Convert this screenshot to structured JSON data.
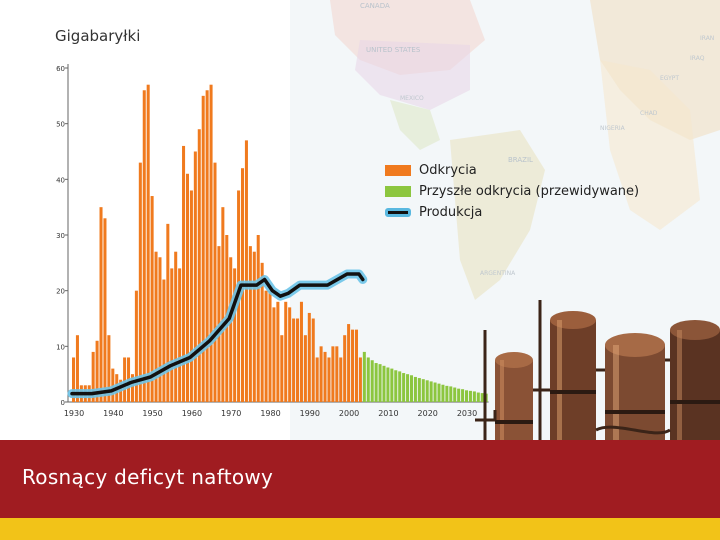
{
  "slide": {
    "title": "Rosnący deficyt naftowy"
  },
  "colors": {
    "discoveries": "#f07a1e",
    "future": "#8cc63f",
    "production_line": "#111111",
    "production_glow": "#6cc3e8",
    "band": "#a01c21",
    "strip": "#f2c318"
  },
  "background": {
    "map_labels": [
      "CANADA",
      "UNITED STATES",
      "MEXICO",
      "BRAZIL",
      "ARGENTINA",
      "EGYPT",
      "IRAQ",
      "IRAN",
      "CHAD",
      "NIGERIA"
    ]
  },
  "chart_data": {
    "type": "bar",
    "title": "Gigabaryłki",
    "xlabel": "",
    "ylabel": "",
    "ylim": [
      0,
      60
    ],
    "xlim": [
      1930,
      2036
    ],
    "yticks": [
      0,
      10,
      20,
      30,
      40,
      50,
      60
    ],
    "xticks": [
      1930,
      1940,
      1950,
      1960,
      1970,
      1980,
      1990,
      2000,
      2010,
      2020,
      2030
    ],
    "grid": false,
    "legend_position": "right",
    "legend": [
      "Odkrycia",
      "Przyszłe odkrycia (przewidywane)",
      "Produkcja"
    ],
    "series": [
      {
        "name": "Odkrycia",
        "type": "bar",
        "x": [
          1930,
          1931,
          1932,
          1933,
          1934,
          1935,
          1936,
          1937,
          1938,
          1939,
          1940,
          1941,
          1942,
          1943,
          1944,
          1945,
          1946,
          1947,
          1948,
          1949,
          1950,
          1951,
          1952,
          1953,
          1954,
          1955,
          1956,
          1957,
          1958,
          1959,
          1960,
          1961,
          1962,
          1963,
          1964,
          1965,
          1966,
          1967,
          1968,
          1969,
          1970,
          1971,
          1972,
          1973,
          1974,
          1975,
          1976,
          1977,
          1978,
          1979,
          1980,
          1981,
          1982,
          1983,
          1984,
          1985,
          1986,
          1987,
          1988,
          1989,
          1990,
          1991,
          1992,
          1993,
          1994,
          1995,
          1996,
          1997,
          1998,
          1999,
          2000,
          2001,
          2002,
          2003
        ],
        "values": [
          8,
          12,
          3,
          3,
          3,
          9,
          11,
          35,
          33,
          12,
          6,
          5,
          4,
          8,
          8,
          5,
          20,
          43,
          56,
          57,
          37,
          27,
          26,
          22,
          32,
          24,
          27,
          24,
          46,
          41,
          38,
          45,
          49,
          55,
          56,
          57,
          43,
          28,
          35,
          30,
          26,
          24,
          38,
          42,
          47,
          28,
          27,
          30,
          25,
          20,
          20,
          17,
          18,
          12,
          18,
          17,
          15,
          15,
          18,
          12,
          16,
          15,
          8,
          10,
          9,
          8,
          10,
          10,
          8,
          12,
          14,
          13,
          13,
          8
        ]
      },
      {
        "name": "Przyszłe odkrycia (przewidywane)",
        "type": "bar",
        "x": [
          2004,
          2005,
          2006,
          2007,
          2008,
          2009,
          2010,
          2011,
          2012,
          2013,
          2014,
          2015,
          2016,
          2017,
          2018,
          2019,
          2020,
          2021,
          2022,
          2023,
          2024,
          2025,
          2026,
          2027,
          2028,
          2029,
          2030,
          2031,
          2032,
          2033,
          2034,
          2035
        ],
        "values": [
          9,
          8,
          7.5,
          7,
          6.8,
          6.5,
          6.2,
          6,
          5.7,
          5.5,
          5.2,
          5,
          4.8,
          4.5,
          4.3,
          4.1,
          3.9,
          3.7,
          3.5,
          3.3,
          3.1,
          2.9,
          2.8,
          2.6,
          2.4,
          2.3,
          2.1,
          2,
          1.9,
          1.7,
          1.6,
          1.5
        ]
      },
      {
        "name": "Produkcja",
        "type": "line",
        "x": [
          1930,
          1935,
          1940,
          1945,
          1950,
          1955,
          1960,
          1965,
          1970,
          1973,
          1975,
          1977,
          1979,
          1981,
          1983,
          1985,
          1988,
          1990,
          1995,
          2000,
          2003,
          2004
        ],
        "values": [
          1.5,
          1.5,
          2,
          3.5,
          4.5,
          6.5,
          8,
          11,
          15,
          21,
          21,
          21,
          22,
          20,
          19,
          19.5,
          21,
          21,
          21,
          23,
          23,
          22
        ]
      }
    ]
  }
}
